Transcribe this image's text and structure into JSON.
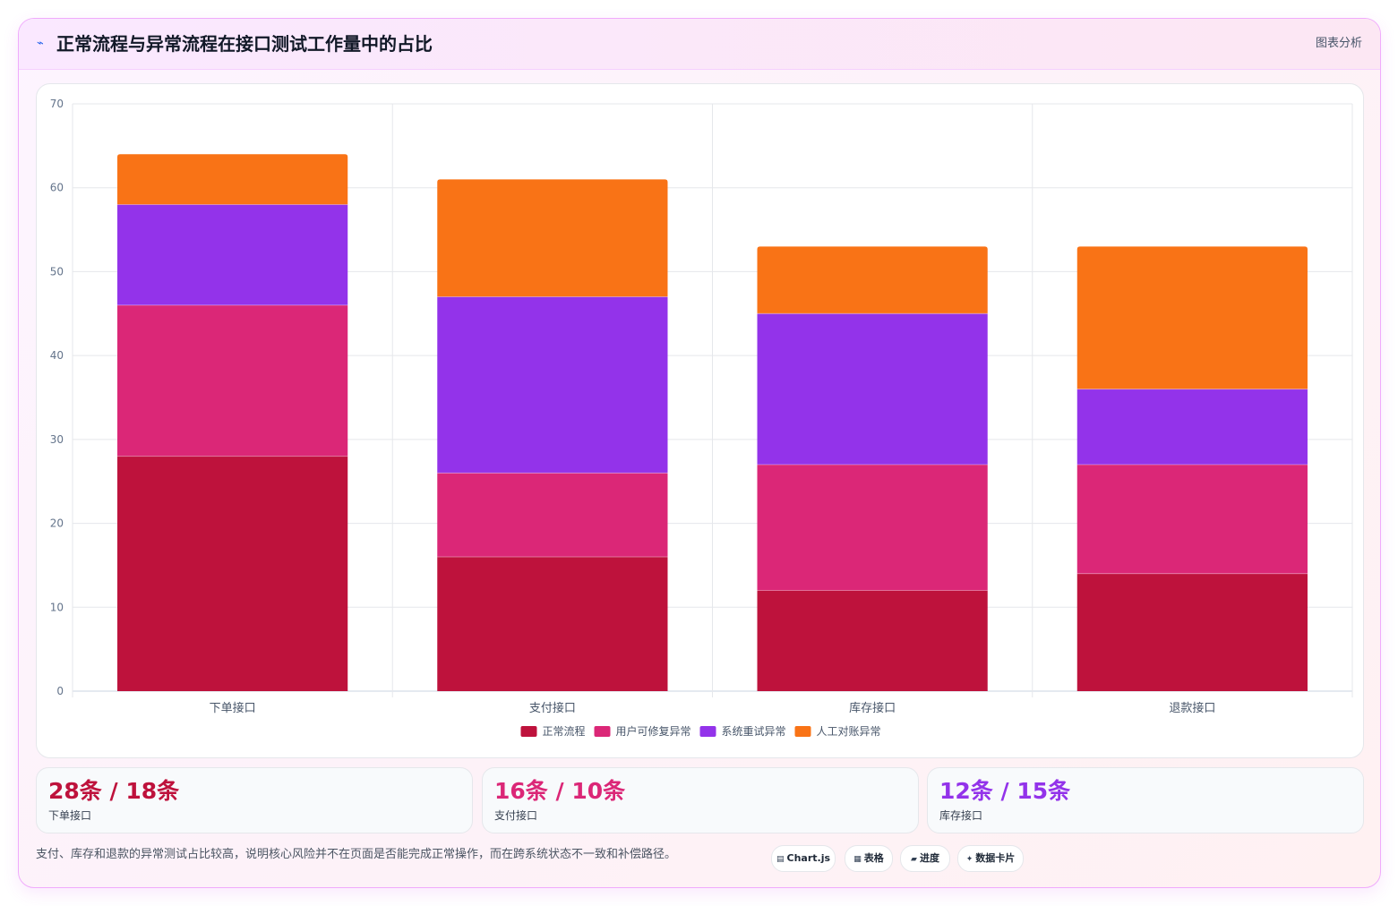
{
  "header": {
    "icon": "line-chart-icon",
    "title": "正常流程与异常流程在接口测试工作量中的占比",
    "tag": "图表分析"
  },
  "chart_data": {
    "type": "bar",
    "stacked": true,
    "title": "",
    "xlabel": "",
    "ylabel": "",
    "categories": [
      "下单接口",
      "支付接口",
      "库存接口",
      "退款接口"
    ],
    "series": [
      {
        "name": "正常流程",
        "color": "#be123c",
        "values": [
          28,
          16,
          12,
          14
        ]
      },
      {
        "name": "用户可修复异常",
        "color": "#db2777",
        "values": [
          18,
          10,
          15,
          13
        ]
      },
      {
        "name": "系统重试异常",
        "color": "#9333ea",
        "values": [
          12,
          21,
          18,
          9
        ]
      },
      {
        "name": "人工对账异常",
        "color": "#f97316",
        "values": [
          6,
          14,
          8,
          17
        ]
      }
    ],
    "ylim": [
      0,
      70
    ],
    "yticks": [
      0,
      10,
      20,
      30,
      40,
      50,
      60,
      70
    ],
    "grid": true,
    "legend": "bottom"
  },
  "stats": [
    {
      "value": "28条 / 18条",
      "label": "下单接口",
      "color": "#be123c"
    },
    {
      "value": "16条 / 10条",
      "label": "支付接口",
      "color": "#db2777"
    },
    {
      "value": "12条 / 15条",
      "label": "库存接口",
      "color": "#9333ea"
    }
  ],
  "note": "支付、库存和退款的异常测试占比较高，说明核心风险并不在页面是否能完成正常操作，而在跨系统状态不一致和补偿路径。",
  "chips": [
    {
      "glyph": "▤",
      "label": "Chart.js",
      "icon": "chart-js-icon"
    },
    {
      "glyph": "▦",
      "label": "表格",
      "icon": "table-icon"
    },
    {
      "glyph": "▰",
      "label": "进度",
      "icon": "progress-icon"
    },
    {
      "glyph": "✦",
      "label": "数据卡片",
      "icon": "data-card-icon"
    }
  ]
}
